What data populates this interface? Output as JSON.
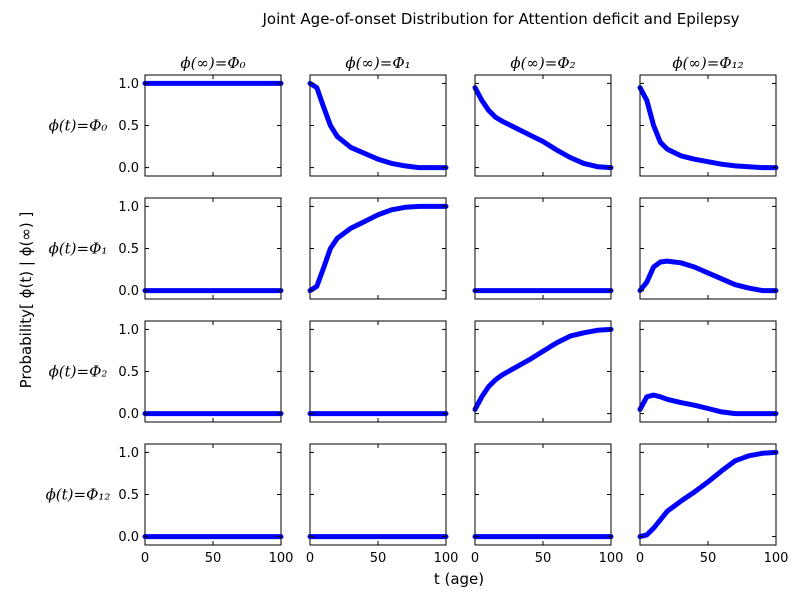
{
  "title": "Joint Age-of-onset Distribution for Attention deficit and Epilepsy",
  "xlabel": "t (age)",
  "ylabel": "Probability[ ϕ(t) | ϕ(∞) ]",
  "col_titles": [
    "ϕ(∞)=Φ₀",
    "ϕ(∞)=Φ₁",
    "ϕ(∞)=Φ₂",
    "ϕ(∞)=Φ₁₂"
  ],
  "row_labels": [
    "ϕ(t)=Φ₀",
    "ϕ(t)=Φ₁",
    "ϕ(t)=Φ₂",
    "ϕ(t)=Φ₁₂"
  ],
  "line_color": "#0000ff",
  "chart_data": {
    "type": "line",
    "layout": "4x4 grid of small multiples (rows: state at age t, columns: final state)",
    "xlim": [
      0,
      100
    ],
    "ylim": [
      -0.1,
      1.1
    ],
    "xticks": [
      "0",
      "50",
      "100"
    ],
    "yticks": [
      "0.0",
      "0.5",
      "1.0"
    ],
    "grid": false,
    "x": [
      0,
      5,
      10,
      15,
      20,
      30,
      40,
      50,
      60,
      70,
      80,
      90,
      100
    ],
    "panels": [
      [
        [
          1,
          1,
          1,
          1,
          1,
          1,
          1,
          1,
          1,
          1,
          1,
          1,
          1
        ],
        [
          1.0,
          0.95,
          0.72,
          0.5,
          0.37,
          0.24,
          0.17,
          0.1,
          0.05,
          0.02,
          0.0,
          0.0,
          0.0
        ],
        [
          0.95,
          0.8,
          0.68,
          0.6,
          0.55,
          0.47,
          0.39,
          0.31,
          0.21,
          0.12,
          0.05,
          0.01,
          0.0
        ],
        [
          0.95,
          0.8,
          0.5,
          0.3,
          0.22,
          0.14,
          0.1,
          0.07,
          0.04,
          0.02,
          0.01,
          0.0,
          0.0
        ]
      ],
      [
        [
          0,
          0,
          0,
          0,
          0,
          0,
          0,
          0,
          0,
          0,
          0,
          0,
          0
        ],
        [
          0.0,
          0.05,
          0.27,
          0.5,
          0.62,
          0.74,
          0.82,
          0.9,
          0.96,
          0.99,
          1.0,
          1.0,
          1.0
        ],
        [
          0,
          0,
          0,
          0,
          0,
          0,
          0,
          0,
          0,
          0,
          0,
          0,
          0
        ],
        [
          0.0,
          0.1,
          0.28,
          0.34,
          0.35,
          0.33,
          0.28,
          0.21,
          0.14,
          0.07,
          0.03,
          0.0,
          0.0
        ]
      ],
      [
        [
          0,
          0,
          0,
          0,
          0,
          0,
          0,
          0,
          0,
          0,
          0,
          0,
          0
        ],
        [
          0,
          0,
          0,
          0,
          0,
          0,
          0,
          0,
          0,
          0,
          0,
          0,
          0
        ],
        [
          0.05,
          0.2,
          0.32,
          0.4,
          0.46,
          0.55,
          0.64,
          0.74,
          0.84,
          0.92,
          0.96,
          0.99,
          1.0
        ],
        [
          0.05,
          0.2,
          0.22,
          0.2,
          0.17,
          0.13,
          0.1,
          0.06,
          0.02,
          0.0,
          0.0,
          0.0,
          0.0
        ]
      ],
      [
        [
          0,
          0,
          0,
          0,
          0,
          0,
          0,
          0,
          0,
          0,
          0,
          0,
          0
        ],
        [
          0,
          0,
          0,
          0,
          0,
          0,
          0,
          0,
          0,
          0,
          0,
          0,
          0
        ],
        [
          0,
          0,
          0,
          0,
          0,
          0,
          0,
          0,
          0,
          0,
          0,
          0,
          0
        ],
        [
          0.0,
          0.02,
          0.1,
          0.2,
          0.3,
          0.42,
          0.53,
          0.65,
          0.78,
          0.9,
          0.96,
          0.99,
          1.0
        ]
      ]
    ]
  }
}
